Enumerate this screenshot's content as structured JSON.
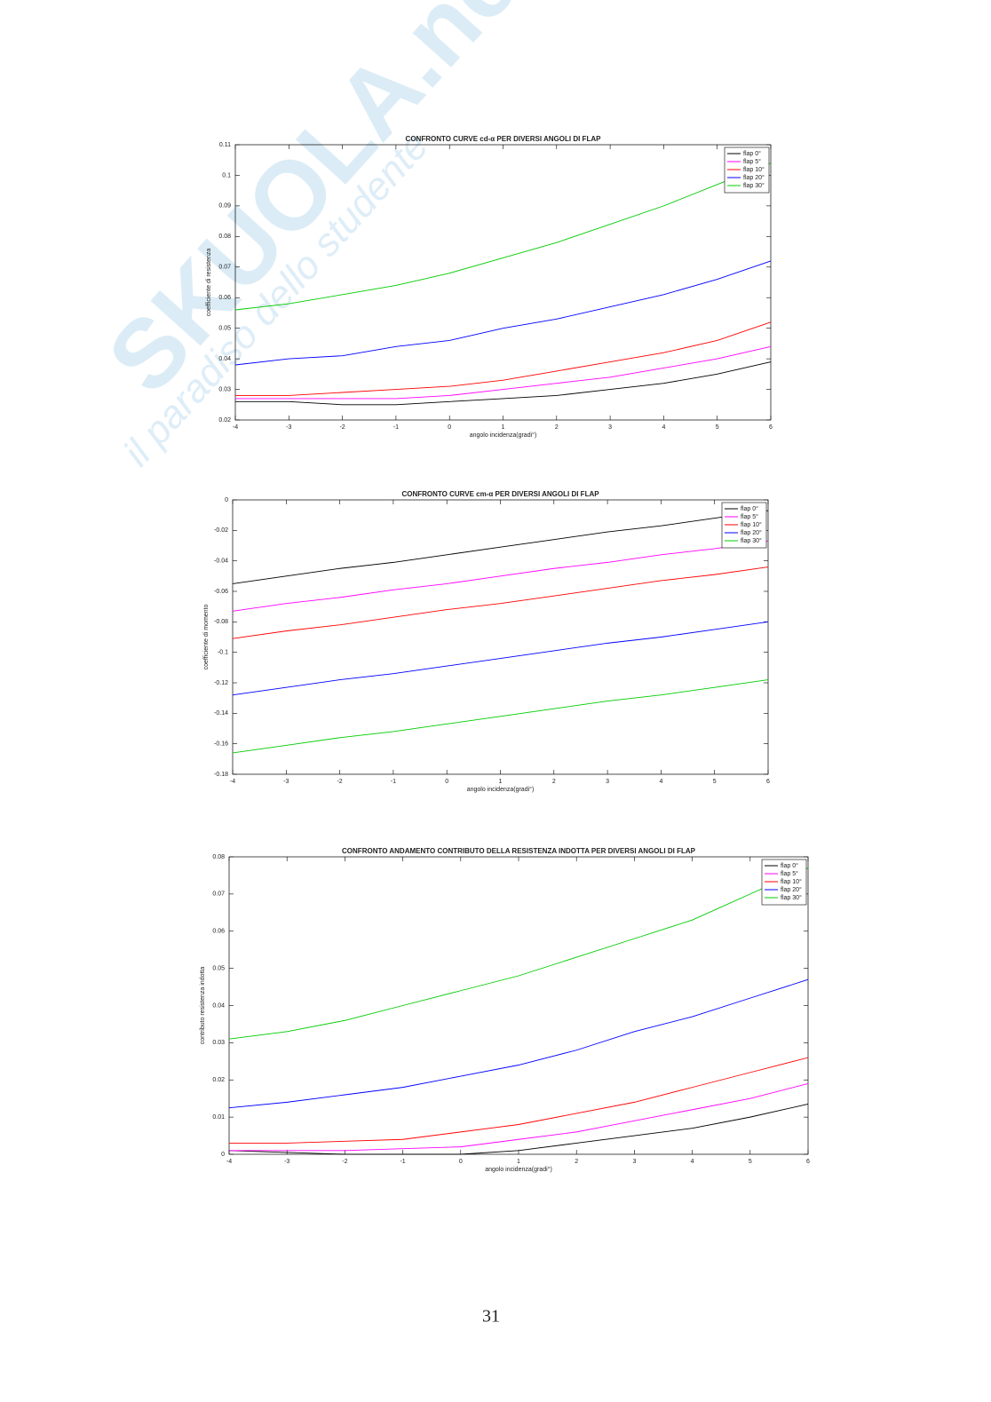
{
  "chart_data": [
    {
      "type": "line",
      "title": "CONFRONTO CURVE cd-α PER DIVERSI ANGOLI DI FLAP",
      "x_label": "angolo incidenza(gradi°)",
      "y_label": "coefficiente di resistenza",
      "x": [
        -4,
        -3,
        -2,
        -1,
        0,
        1,
        2,
        3,
        4,
        5,
        6
      ],
      "xlim": [
        -4,
        6
      ],
      "xticks": [
        -4,
        -3,
        -2,
        -1,
        0,
        1,
        2,
        3,
        4,
        5,
        6
      ],
      "ylim": [
        0.02,
        0.11
      ],
      "yticks": [
        0.02,
        0.03,
        0.04,
        0.05,
        0.06,
        0.07,
        0.08,
        0.09,
        0.1,
        0.11
      ],
      "legend": "upper right",
      "series": [
        {
          "name": "flap 0°",
          "color": "#000000",
          "values": [
            0.026,
            0.026,
            0.025,
            0.025,
            0.026,
            0.027,
            0.028,
            0.03,
            0.032,
            0.035,
            0.039
          ]
        },
        {
          "name": "flap 5°",
          "color": "#ff00ff",
          "values": [
            0.027,
            0.027,
            0.027,
            0.027,
            0.028,
            0.03,
            0.032,
            0.034,
            0.037,
            0.04,
            0.044
          ]
        },
        {
          "name": "flap 10°",
          "color": "#ff0000",
          "values": [
            0.028,
            0.028,
            0.029,
            0.03,
            0.031,
            0.033,
            0.036,
            0.039,
            0.042,
            0.046,
            0.052
          ]
        },
        {
          "name": "flap 20°",
          "color": "#0000ff",
          "values": [
            0.038,
            0.04,
            0.041,
            0.044,
            0.046,
            0.05,
            0.053,
            0.057,
            0.061,
            0.066,
            0.072
          ]
        },
        {
          "name": "flap 30°",
          "color": "#00cc00",
          "values": [
            0.056,
            0.058,
            0.061,
            0.064,
            0.068,
            0.073,
            0.078,
            0.084,
            0.09,
            0.097,
            0.104
          ]
        }
      ]
    },
    {
      "type": "line",
      "title": "CONFRONTO CURVE cm-α PER DIVERSI ANGOLI DI FLAP",
      "x_label": "angolo incidenza(gradi°)",
      "y_label": "coefficiente di momento",
      "x": [
        -4,
        -3,
        -2,
        -1,
        0,
        1,
        2,
        3,
        4,
        5,
        6
      ],
      "xlim": [
        -4,
        6
      ],
      "xticks": [
        -4,
        -3,
        -2,
        -1,
        0,
        1,
        2,
        3,
        4,
        5,
        6
      ],
      "ylim": [
        -0.18,
        0
      ],
      "yticks": [
        -0.18,
        -0.16,
        -0.14,
        -0.12,
        -0.1,
        -0.08,
        -0.06,
        -0.04,
        -0.02,
        0
      ],
      "legend": "upper right",
      "series": [
        {
          "name": "flap 0°",
          "color": "#000000",
          "values": [
            -0.055,
            -0.05,
            -0.045,
            -0.041,
            -0.036,
            -0.031,
            -0.026,
            -0.021,
            -0.017,
            -0.012,
            -0.007
          ]
        },
        {
          "name": "flap 5°",
          "color": "#ff00ff",
          "values": [
            -0.073,
            -0.068,
            -0.064,
            -0.059,
            -0.055,
            -0.05,
            -0.045,
            -0.041,
            -0.036,
            -0.032,
            -0.027
          ]
        },
        {
          "name": "flap 10°",
          "color": "#ff0000",
          "values": [
            -0.091,
            -0.086,
            -0.082,
            -0.077,
            -0.072,
            -0.068,
            -0.063,
            -0.058,
            -0.053,
            -0.049,
            -0.044
          ]
        },
        {
          "name": "flap 20°",
          "color": "#0000ff",
          "values": [
            -0.128,
            -0.123,
            -0.118,
            -0.114,
            -0.109,
            -0.104,
            -0.099,
            -0.094,
            -0.09,
            -0.085,
            -0.08
          ]
        },
        {
          "name": "flap 30°",
          "color": "#00cc00",
          "values": [
            -0.166,
            -0.161,
            -0.156,
            -0.152,
            -0.147,
            -0.142,
            -0.137,
            -0.132,
            -0.128,
            -0.123,
            -0.118
          ]
        }
      ]
    },
    {
      "type": "line",
      "title": "CONFRONTO ANDAMENTO CONTRIBUTO DELLA RESISTENZA  INDOTTA PER DIVERSI ANGOLI DI FLAP",
      "x_label": "angolo incidenza(gradi°)",
      "y_label": "contributo resistenza indotta",
      "x": [
        -4,
        -3,
        -2,
        -1,
        0,
        1,
        2,
        3,
        4,
        5,
        6
      ],
      "xlim": [
        -4,
        6
      ],
      "xticks": [
        -4,
        -3,
        -2,
        -1,
        0,
        1,
        2,
        3,
        4,
        5,
        6
      ],
      "ylim": [
        0,
        0.08
      ],
      "yticks": [
        0,
        0.01,
        0.02,
        0.03,
        0.04,
        0.05,
        0.06,
        0.07,
        0.08
      ],
      "legend": "upper right",
      "series": [
        {
          "name": "flap 0°",
          "color": "#000000",
          "values": [
            0.001,
            0.0005,
            0,
            0,
            0,
            0.001,
            0.003,
            0.005,
            0.007,
            0.01,
            0.0135
          ]
        },
        {
          "name": "flap 5°",
          "color": "#ff00ff",
          "values": [
            0.001,
            0.001,
            0.001,
            0.0015,
            0.002,
            0.004,
            0.006,
            0.009,
            0.012,
            0.015,
            0.019
          ]
        },
        {
          "name": "flap 10°",
          "color": "#ff0000",
          "values": [
            0.003,
            0.003,
            0.0035,
            0.004,
            0.006,
            0.008,
            0.011,
            0.014,
            0.018,
            0.022,
            0.026
          ]
        },
        {
          "name": "flap 20°",
          "color": "#0000ff",
          "values": [
            0.0125,
            0.014,
            0.016,
            0.018,
            0.021,
            0.024,
            0.028,
            0.033,
            0.037,
            0.042,
            0.047
          ]
        },
        {
          "name": "flap 30°",
          "color": "#00cc00",
          "values": [
            0.031,
            0.033,
            0.036,
            0.04,
            0.044,
            0.048,
            0.053,
            0.058,
            0.063,
            0.07,
            0.077
          ]
        }
      ]
    }
  ],
  "watermark": {
    "brand": "SKUOLA.net",
    "tagline": "il paradiso dello studente"
  },
  "page_number": "31"
}
